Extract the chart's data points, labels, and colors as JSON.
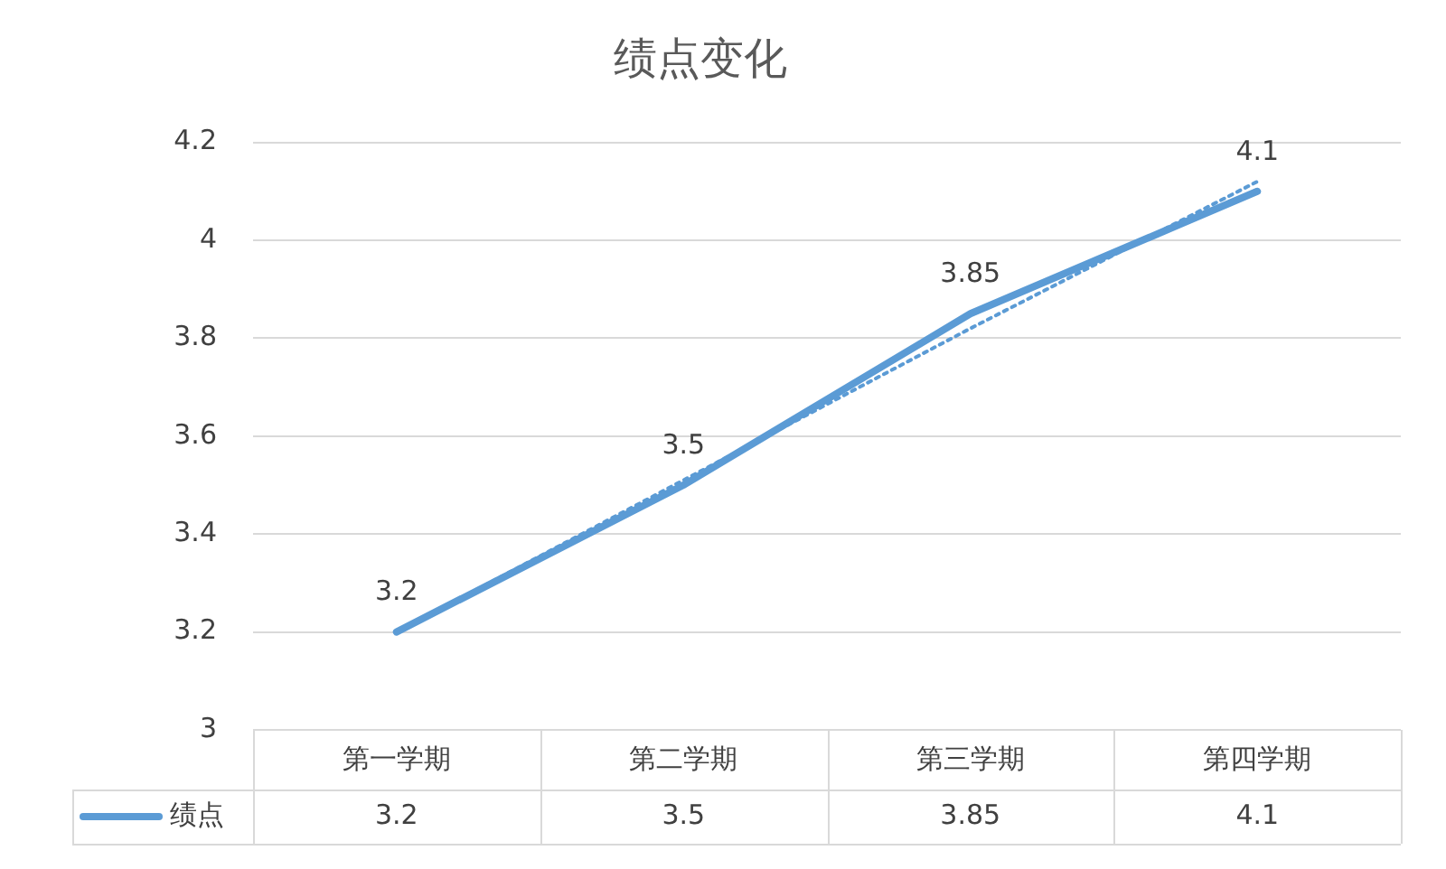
{
  "chart_data": {
    "type": "line",
    "title": "绩点变化",
    "categories": [
      "第一学期",
      "第二学期",
      "第三学期",
      "第四学期"
    ],
    "series": [
      {
        "name": "绩点",
        "color": "#5b9bd5",
        "values": [
          3.2,
          3.5,
          3.85,
          4.1
        ],
        "value_labels": [
          "3.2",
          "3.5",
          "3.85",
          "4.1"
        ]
      },
      {
        "type": "line",
        "color": "#5b9bd5",
        "line_style": "dotted",
        "values": [
          3.2,
          3.51,
          3.82,
          4.12
        ]
      }
    ],
    "ylim": [
      3,
      4.2
    ],
    "yticks": [
      3,
      3.2,
      3.4,
      3.6,
      3.8,
      4,
      4.2
    ],
    "grid": "y",
    "legend": "bottom",
    "marker": "none",
    "line_style": "solid"
  }
}
